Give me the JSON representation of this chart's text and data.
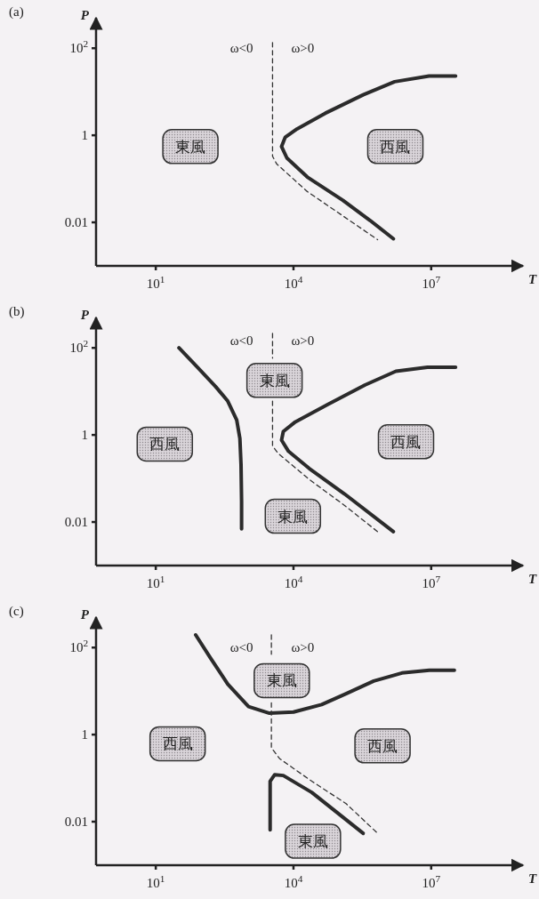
{
  "chart_data": [
    {
      "type": "line",
      "title": "(a)",
      "xlabel": "T",
      "ylabel": "P",
      "log": "xy",
      "xlim": [
        0.5,
        1000000000
      ],
      "ylim": [
        0.001,
        500
      ],
      "xticks": [
        {
          "value": 10,
          "label": "10$^{1}$"
        },
        {
          "value": 10000,
          "label": "10$^{4}$"
        },
        {
          "value": 10000000,
          "label": "10$^{7}$"
        }
      ],
      "yticks": [
        {
          "value": 0.01,
          "label": "0.01"
        },
        {
          "value": 1,
          "label": "1"
        },
        {
          "value": 100,
          "label": "10$^{2}$"
        }
      ],
      "series": [
        {
          "color": "#2b2b2b",
          "line_style": "solid",
          "x": [
            34000000.0,
            9000000.0,
            1600000.0,
            330000.0,
            49000.0,
            12000.0,
            6600,
            5500,
            7200,
            20000.0,
            120000.0,
            470000.0,
            1500000.0
          ],
          "values": [
            23,
            23,
            17,
            8.5,
            3.2,
            1.4,
            0.9,
            0.55,
            0.3,
            0.11,
            0.032,
            0.011,
            0.0042
          ]
        },
        {
          "color": "#333333",
          "line_style": "dashed",
          "x": [
            3500,
            3500,
            4300,
            20000.0,
            120000.0,
            680000.0
          ],
          "values": [
            135,
            0.33,
            0.22,
            0.051,
            0.014,
            0.004
          ]
        }
      ],
      "annotations": [
        "ω<0",
        "ω>0",
        "東風",
        "西風"
      ]
    },
    {
      "type": "line",
      "title": "(b)",
      "xlabel": "T",
      "ylabel": "P",
      "log": "xy",
      "xlim": [
        0.5,
        1000000000
      ],
      "ylim": [
        0.001,
        500
      ],
      "xticks": [
        {
          "value": 10,
          "label": "10$^{1}$"
        },
        {
          "value": 10000,
          "label": "10$^{4}$"
        },
        {
          "value": 10000000,
          "label": "10$^{7}$"
        }
      ],
      "yticks": [
        {
          "value": 0.01,
          "label": "0.01"
        },
        {
          "value": 1,
          "label": "1"
        },
        {
          "value": 100,
          "label": "10$^{2}$"
        }
      ],
      "series": [
        {
          "color": "#2b2b2b",
          "line_style": "solid",
          "x": [
            32,
            83,
            200,
            370,
            580,
            680,
            720,
            740,
            740
          ],
          "values": [
            100,
            35,
            13,
            6,
            2.2,
            0.83,
            0.21,
            0.03,
            0.007
          ]
        },
        {
          "color": "#2b2b2b",
          "line_style": "solid",
          "x": [
            34000000.0,
            8300000.0,
            1700000.0,
            360000.0,
            54000.0,
            11000.0,
            6000,
            5500,
            7800,
            22000.0,
            130000.0,
            1500000.0
          ],
          "values": [
            36,
            36,
            29,
            14,
            4.9,
            2.0,
            1.2,
            0.76,
            0.42,
            0.17,
            0.044,
            0.006
          ]
        },
        {
          "color": "#333333",
          "line_style": "dashed",
          "x": [
            3500,
            3500,
            null,
            3500,
            3500,
            4600,
            22000.0,
            130000.0,
            680000.0
          ],
          "values": [
            215,
            58,
            null,
            6,
            0.56,
            0.38,
            0.095,
            0.024,
            0.006
          ]
        }
      ],
      "annotations": [
        "ω<0",
        "ω>0",
        "東風",
        "西風",
        "西風",
        "東風"
      ]
    },
    {
      "type": "line",
      "title": "(c)",
      "xlabel": "T",
      "ylabel": "P",
      "log": "xy",
      "xlim": [
        0.5,
        1000000000
      ],
      "ylim": [
        0.001,
        500
      ],
      "xticks": [
        {
          "value": 10,
          "label": "10$^{1}$"
        },
        {
          "value": 10000,
          "label": "10$^{4}$"
        },
        {
          "value": 10000000,
          "label": "10$^{7}$"
        }
      ],
      "yticks": [
        {
          "value": 0.01,
          "label": "0.01"
        },
        {
          "value": 1,
          "label": "1"
        },
        {
          "value": 100,
          "label": "10$^{2}$"
        }
      ],
      "series": [
        {
          "color": "#2b2b2b",
          "line_style": "solid",
          "x": [
            74,
            155,
            370,
            1050,
            3000,
            10000,
            41000,
            140000,
            560000,
            2300000,
            9100000,
            32000000
          ],
          "values": [
            195,
            58,
            14.5,
            4.4,
            3.1,
            3.3,
            4.9,
            8.7,
            17,
            26,
            30,
            30
          ]
        },
        {
          "color": "#2b2b2b",
          "line_style": "solid",
          "x": [
            3100,
            3100,
            3900,
            6000,
            25000,
            330000
          ],
          "values": [
            0.0065,
            0.085,
            0.12,
            0.115,
            0.047,
            0.0054
          ]
        },
        {
          "color": "#333333",
          "line_style": "dashed",
          "x": [
            3300,
            3300,
            null,
            3300,
            3300,
            5000,
            25000,
            140000,
            680000
          ],
          "values": [
            195,
            70,
            null,
            5.4,
            0.5,
            0.28,
            0.085,
            0.026,
            0.0054
          ]
        }
      ],
      "annotations": [
        "ω<0",
        "ω>0",
        "東風",
        "西風",
        "西風",
        "東風"
      ]
    }
  ]
}
